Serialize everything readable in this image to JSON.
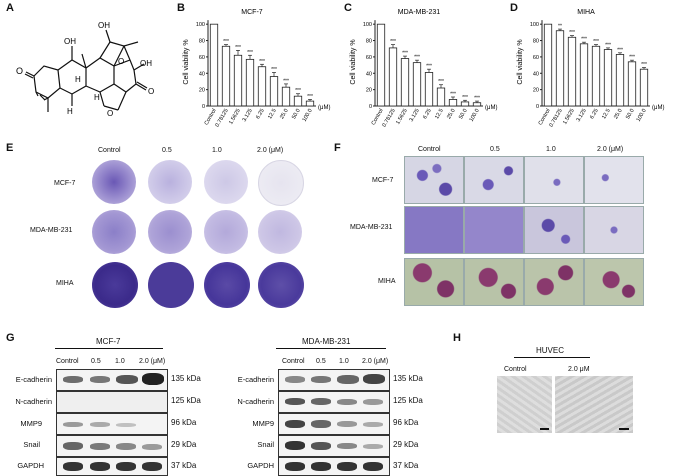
{
  "panels": {
    "A": "A",
    "B": "B",
    "C": "C",
    "D": "D",
    "E": "E",
    "F": "F",
    "G": "G",
    "H": "H"
  },
  "charts_common": {
    "ylabel": "Cell viability %",
    "unit": "(μM)",
    "categories": [
      "Control",
      "0.78125",
      "1.5625",
      "3.125",
      "6.25",
      "12.5",
      "25.0",
      "50.0",
      "100.0"
    ],
    "yticks": [
      "0",
      "20",
      "40",
      "60",
      "80",
      "100"
    ]
  },
  "chart_data": [
    {
      "type": "bar",
      "title": "MCF-7",
      "ylabel": "Cell viability %",
      "ylim": [
        0,
        110
      ],
      "categories": [
        "Control",
        "0.78125",
        "1.5625",
        "3.125",
        "6.25",
        "12.5",
        "25.0",
        "50.0",
        "100.0"
      ],
      "values": [
        100,
        73,
        62,
        57,
        48,
        36,
        23,
        12,
        6
      ],
      "errors": [
        0,
        2,
        6,
        5,
        3,
        5,
        4,
        3,
        2
      ],
      "significance": [
        "",
        "***",
        "***",
        "***",
        "***",
        "***",
        "***",
        "***",
        "***"
      ]
    },
    {
      "type": "bar",
      "title": "MDA-MB-231",
      "ylabel": "Cell viability %",
      "ylim": [
        0,
        110
      ],
      "categories": [
        "Control",
        "0.78125",
        "1.5625",
        "3.125",
        "6.25",
        "12.5",
        "25.0",
        "50.0",
        "100.0"
      ],
      "values": [
        100,
        71,
        58,
        53,
        41,
        22,
        8,
        5,
        4
      ],
      "errors": [
        0,
        4,
        3,
        3,
        4,
        4,
        3,
        2,
        2
      ],
      "significance": [
        "",
        "***",
        "***",
        "***",
        "***",
        "***",
        "***",
        "***",
        "***"
      ]
    },
    {
      "type": "bar",
      "title": "MIHA",
      "ylabel": "Cell viability %",
      "ylim": [
        0,
        110
      ],
      "categories": [
        "Control",
        "0.78125",
        "1.5625",
        "3.125",
        "6.25",
        "12.5",
        "25.0",
        "50.0",
        "100.0"
      ],
      "values": [
        100,
        92,
        84,
        76,
        73,
        69,
        63,
        54,
        45
      ],
      "errors": [
        0,
        2,
        2,
        2,
        2,
        2,
        2,
        2,
        2
      ],
      "significance": [
        "",
        "**",
        "***",
        "***",
        "***",
        "***",
        "***",
        "***",
        "***"
      ]
    }
  ],
  "structure": {
    "atoms": [
      "O",
      "OH",
      "OH",
      "O",
      "OH",
      "O",
      "O",
      "H",
      "H",
      "H"
    ]
  },
  "panelE": {
    "columns": [
      "Control",
      "0.5",
      "1.0",
      "2.0 (μM)"
    ],
    "rows": [
      "MCF-7",
      "MDA-MB-231",
      "MIHA"
    ]
  },
  "panelF": {
    "columns": [
      "Control",
      "0.5",
      "1.0",
      "2.0 (μM)"
    ],
    "rows": [
      "MCF-7",
      "MDA-MB-231",
      "MIHA"
    ]
  },
  "panelG": {
    "left_title": "MCF-7",
    "right_title": "MDA-MB-231",
    "lanes": [
      "Control",
      "0.5",
      "1.0",
      "2.0 (μM)"
    ],
    "proteins": [
      "E-cadherin",
      "N-cadherin",
      "MMP9",
      "Snail",
      "GAPDH"
    ],
    "kda": [
      "135 kDa",
      "125 kDa",
      "96 kDa",
      "29 kDa",
      "37 kDa"
    ]
  },
  "panelH": {
    "title": "HUVEC",
    "labels": [
      "Control",
      "2.0 μM"
    ]
  },
  "colors": {
    "bar_fill": "#ffffff",
    "bar_stroke": "#222222",
    "crystal_violet": "#5b4aa8",
    "stain_dark": "#3b2a8a",
    "miha_tissue": "#8a3a6e"
  }
}
